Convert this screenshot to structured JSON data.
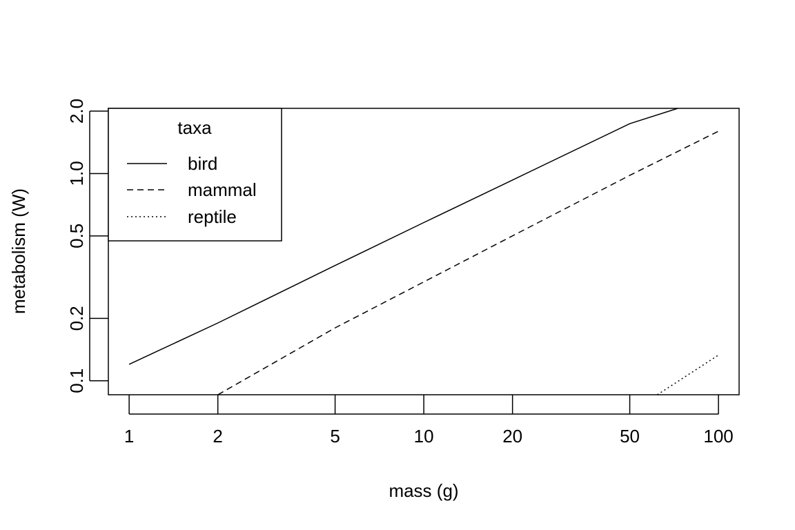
{
  "chart_data": {
    "type": "line",
    "title": "",
    "xlabel": "mass (g)",
    "ylabel": "metabolism (W)",
    "x_scale": "log",
    "y_scale": "log",
    "xlim": [
      0.85,
      117.5
    ],
    "ylim": [
      0.0856,
      2.063
    ],
    "xticks": [
      1,
      2,
      5,
      10,
      20,
      50,
      100
    ],
    "xtick_labels": [
      "1",
      "2",
      "5",
      "10",
      "20",
      "50",
      "100"
    ],
    "yticks": [
      0.1,
      0.2,
      0.5,
      1.0,
      2.0
    ],
    "ytick_labels": [
      "0.1",
      "0.2",
      "0.5",
      "1.0",
      "2.0"
    ],
    "grid": false,
    "legend": {
      "title": "taxa",
      "position": "top-left",
      "entries": [
        "bird",
        "mammal",
        "reptile"
      ]
    },
    "series": [
      {
        "name": "bird",
        "line_style": "solid",
        "x": [
          1,
          2,
          5,
          10,
          20,
          50,
          72.8
        ],
        "y": [
          0.12,
          0.19,
          0.36,
          0.58,
          0.93,
          1.74,
          2.063
        ]
      },
      {
        "name": "mammal",
        "line_style": "dashed",
        "x": [
          2,
          5,
          10,
          20,
          50,
          100
        ],
        "y": [
          0.0856,
          0.18,
          0.3,
          0.5,
          0.98,
          1.6
        ]
      },
      {
        "name": "reptile",
        "line_style": "dotted",
        "x": [
          62,
          100
        ],
        "y": [
          0.0856,
          0.133
        ]
      }
    ]
  }
}
